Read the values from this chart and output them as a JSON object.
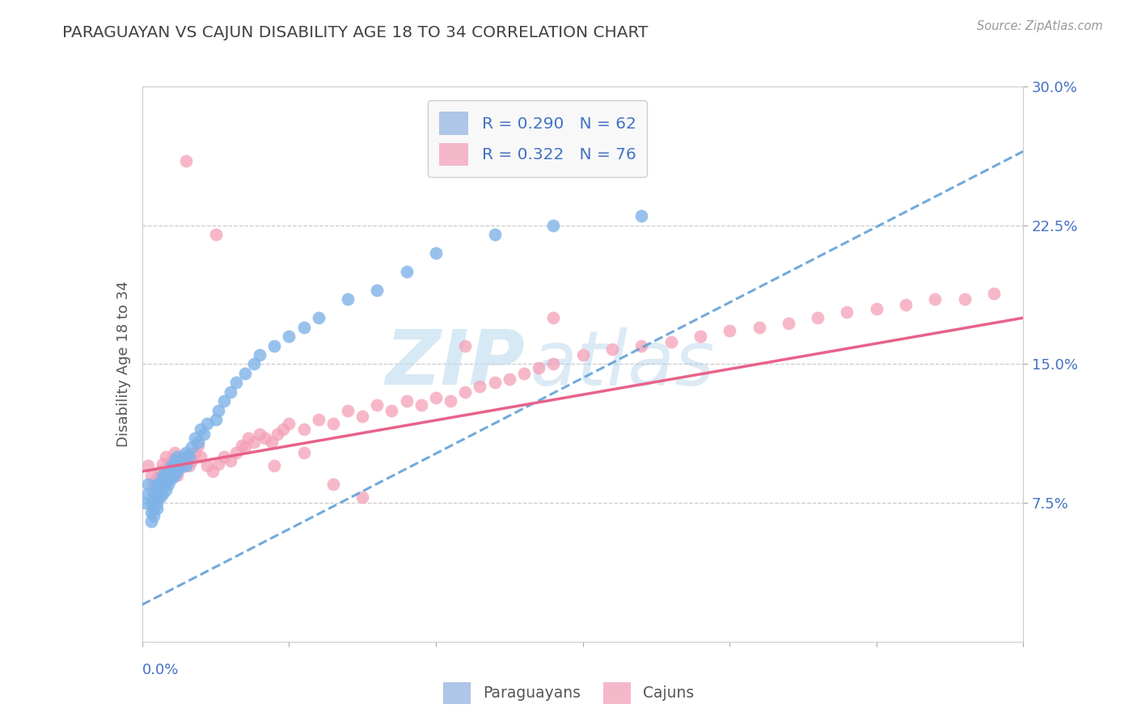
{
  "title": "PARAGUAYAN VS CAJUN DISABILITY AGE 18 TO 34 CORRELATION CHART",
  "source_text": "Source: ZipAtlas.com",
  "ylabel": "Disability Age 18 to 34",
  "xlim": [
    0.0,
    0.3
  ],
  "ylim": [
    0.0,
    0.3
  ],
  "r_paraguayan": 0.29,
  "n_paraguayan": 62,
  "r_cajun": 0.322,
  "n_cajun": 76,
  "color_paraguayan": "#7fb3e8",
  "color_cajun": "#f4a0b8",
  "watermark_zip": "ZIP",
  "watermark_atlas": "atlas",
  "background_color": "#ffffff",
  "trend_blue_start_y": 0.02,
  "trend_blue_end_y": 0.265,
  "trend_pink_start_y": 0.092,
  "trend_pink_end_y": 0.175,
  "paraguayan_x": [
    0.001,
    0.002,
    0.002,
    0.003,
    0.003,
    0.003,
    0.004,
    0.004,
    0.004,
    0.004,
    0.005,
    0.005,
    0.005,
    0.005,
    0.005,
    0.006,
    0.006,
    0.006,
    0.007,
    0.007,
    0.007,
    0.008,
    0.008,
    0.008,
    0.009,
    0.009,
    0.01,
    0.01,
    0.011,
    0.011,
    0.012,
    0.012,
    0.013,
    0.014,
    0.015,
    0.015,
    0.016,
    0.017,
    0.018,
    0.019,
    0.02,
    0.021,
    0.022,
    0.025,
    0.026,
    0.028,
    0.03,
    0.032,
    0.035,
    0.038,
    0.04,
    0.045,
    0.05,
    0.055,
    0.06,
    0.07,
    0.08,
    0.09,
    0.1,
    0.12,
    0.14,
    0.17
  ],
  "paraguayan_y": [
    0.075,
    0.08,
    0.085,
    0.065,
    0.07,
    0.075,
    0.068,
    0.072,
    0.076,
    0.08,
    0.072,
    0.075,
    0.078,
    0.082,
    0.085,
    0.078,
    0.082,
    0.086,
    0.08,
    0.085,
    0.09,
    0.082,
    0.086,
    0.09,
    0.085,
    0.092,
    0.088,
    0.095,
    0.09,
    0.098,
    0.092,
    0.1,
    0.095,
    0.1,
    0.095,
    0.102,
    0.1,
    0.105,
    0.11,
    0.108,
    0.115,
    0.112,
    0.118,
    0.12,
    0.125,
    0.13,
    0.135,
    0.14,
    0.145,
    0.15,
    0.155,
    0.16,
    0.165,
    0.17,
    0.175,
    0.185,
    0.19,
    0.2,
    0.21,
    0.22,
    0.225,
    0.23
  ],
  "cajun_x": [
    0.002,
    0.003,
    0.004,
    0.005,
    0.006,
    0.007,
    0.008,
    0.009,
    0.01,
    0.011,
    0.012,
    0.013,
    0.014,
    0.015,
    0.016,
    0.017,
    0.018,
    0.019,
    0.02,
    0.022,
    0.024,
    0.026,
    0.028,
    0.03,
    0.032,
    0.034,
    0.036,
    0.038,
    0.04,
    0.042,
    0.044,
    0.046,
    0.048,
    0.05,
    0.055,
    0.06,
    0.065,
    0.07,
    0.075,
    0.08,
    0.085,
    0.09,
    0.095,
    0.1,
    0.105,
    0.11,
    0.115,
    0.12,
    0.125,
    0.13,
    0.135,
    0.14,
    0.15,
    0.16,
    0.17,
    0.18,
    0.19,
    0.2,
    0.21,
    0.22,
    0.23,
    0.24,
    0.25,
    0.26,
    0.27,
    0.28,
    0.29,
    0.035,
    0.045,
    0.055,
    0.065,
    0.075,
    0.015,
    0.025,
    0.11,
    0.14
  ],
  "cajun_y": [
    0.095,
    0.09,
    0.085,
    0.088,
    0.092,
    0.096,
    0.1,
    0.095,
    0.098,
    0.102,
    0.09,
    0.094,
    0.098,
    0.1,
    0.095,
    0.098,
    0.102,
    0.106,
    0.1,
    0.095,
    0.092,
    0.096,
    0.1,
    0.098,
    0.102,
    0.106,
    0.11,
    0.108,
    0.112,
    0.11,
    0.108,
    0.112,
    0.115,
    0.118,
    0.115,
    0.12,
    0.118,
    0.125,
    0.122,
    0.128,
    0.125,
    0.13,
    0.128,
    0.132,
    0.13,
    0.135,
    0.138,
    0.14,
    0.142,
    0.145,
    0.148,
    0.15,
    0.155,
    0.158,
    0.16,
    0.162,
    0.165,
    0.168,
    0.17,
    0.172,
    0.175,
    0.178,
    0.18,
    0.182,
    0.185,
    0.185,
    0.188,
    0.105,
    0.095,
    0.102,
    0.085,
    0.078,
    0.26,
    0.22,
    0.16,
    0.175
  ]
}
